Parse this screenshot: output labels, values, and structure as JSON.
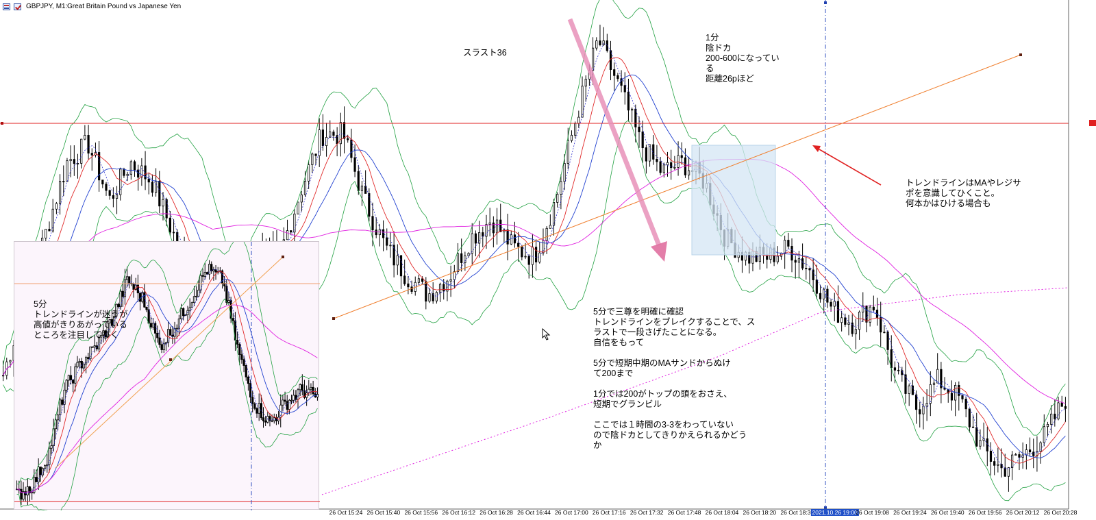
{
  "header": {
    "symbol": "GBPJPY, M1:",
    "description": "Great Britain Pound vs Japanese Yen"
  },
  "annotations": {
    "thrust": "スラスト36",
    "one_min": "1分\n陰ドカ\n200-600になってい\nる\n距離26pほど",
    "trendline_note": "トレンドラインはMAやレジサ\nポを意識してひくこと。\n何本かはひける場合も",
    "main_note": "5分で三尊を明確に確認\nトレンドラインをブレイクすることで、ス\nラストで一段さげたことになる。\n自信をもって\n\n5分で短期中期のMAサンドからぬけ\nて200まで\n\n1分では200がトップの頭をおさえ、\n短期でグランビル\n\nここでは１時間の3-3をわっていない\nので陰ドカとしてきりかえられるかどう\nか",
    "inset_note": "5分\nトレンドラインが迷うが\n高値がきりあがっている\nところを注目してひく"
  },
  "colors": {
    "background": "#ffffff",
    "inset_background": "#fcf5fc",
    "candles": "#000000",
    "ma_fast": "#e02828",
    "ma_mid": "#2040d0",
    "ma_slow": "#e020e0",
    "bollinger": "#20a040",
    "fast_signal": "#3030d0",
    "horizontal_level": "#e02020",
    "trendline": "#f08030",
    "arrow_pink": "#e060a0",
    "arrow_red": "#e02020",
    "vline": "#3050c0",
    "highlight_box": "#d4e6f4"
  },
  "chart_data": {
    "type": "candlestick",
    "title": "GBPJPY, M1: Great Britain Pound vs Japanese Yen",
    "x_ticks": [
      {
        "label": "26 Oct 15:24"
      },
      {
        "label": "26 Oct 15:40"
      },
      {
        "label": "26 Oct 15:56"
      },
      {
        "label": "26 Oct 16:12"
      },
      {
        "label": "26 Oct 16:28"
      },
      {
        "label": "26 Oct 16:44"
      },
      {
        "label": "26 Oct 17:00"
      },
      {
        "label": "26 Oct 17:16"
      },
      {
        "label": "26 Oct 17:32"
      },
      {
        "label": "26 Oct 17:48"
      },
      {
        "label": "26 Oct 18:04"
      },
      {
        "label": "26 Oct 18:20"
      },
      {
        "label": "26 Oct 18:36"
      },
      {
        "label": "2021.10.26 19:00",
        "highlight": true
      },
      {
        "label": "26 Oct 19:08"
      },
      {
        "label": "26 Oct 19:24"
      },
      {
        "label": "26 Oct 19:40"
      },
      {
        "label": "26 Oct 19:56"
      },
      {
        "label": "26 Oct 20:12"
      },
      {
        "label": "26 Oct 20:28"
      }
    ],
    "price_path": [
      0.25,
      0.4,
      0.55,
      0.7,
      0.74,
      0.62,
      0.7,
      0.66,
      0.55,
      0.42,
      0.32,
      0.45,
      0.52,
      0.5,
      0.64,
      0.76,
      0.76,
      0.62,
      0.52,
      0.46,
      0.42,
      0.46,
      0.54,
      0.58,
      0.52,
      0.5,
      0.62,
      0.8,
      0.96,
      0.86,
      0.74,
      0.68,
      0.7,
      0.66,
      0.54,
      0.5,
      0.5,
      0.52,
      0.47,
      0.39,
      0.36,
      0.4,
      0.25,
      0.18,
      0.24,
      0.2,
      0.1,
      0.05,
      0.08,
      0.12,
      0.2
    ],
    "inset_price_path": [
      0.04,
      0.08,
      0.2,
      0.45,
      0.55,
      0.62,
      0.72,
      0.88,
      0.8,
      0.62,
      0.7,
      0.8,
      0.92,
      0.88,
      0.6,
      0.4,
      0.32,
      0.4,
      0.45,
      0.42
    ],
    "horizontal_level": "resistance",
    "trendline": "ascending",
    "highlight_zone": "range box",
    "indicators": [
      "MA fast",
      "MA mid",
      "MA slow",
      "Bollinger Bands",
      "fast signal"
    ]
  }
}
